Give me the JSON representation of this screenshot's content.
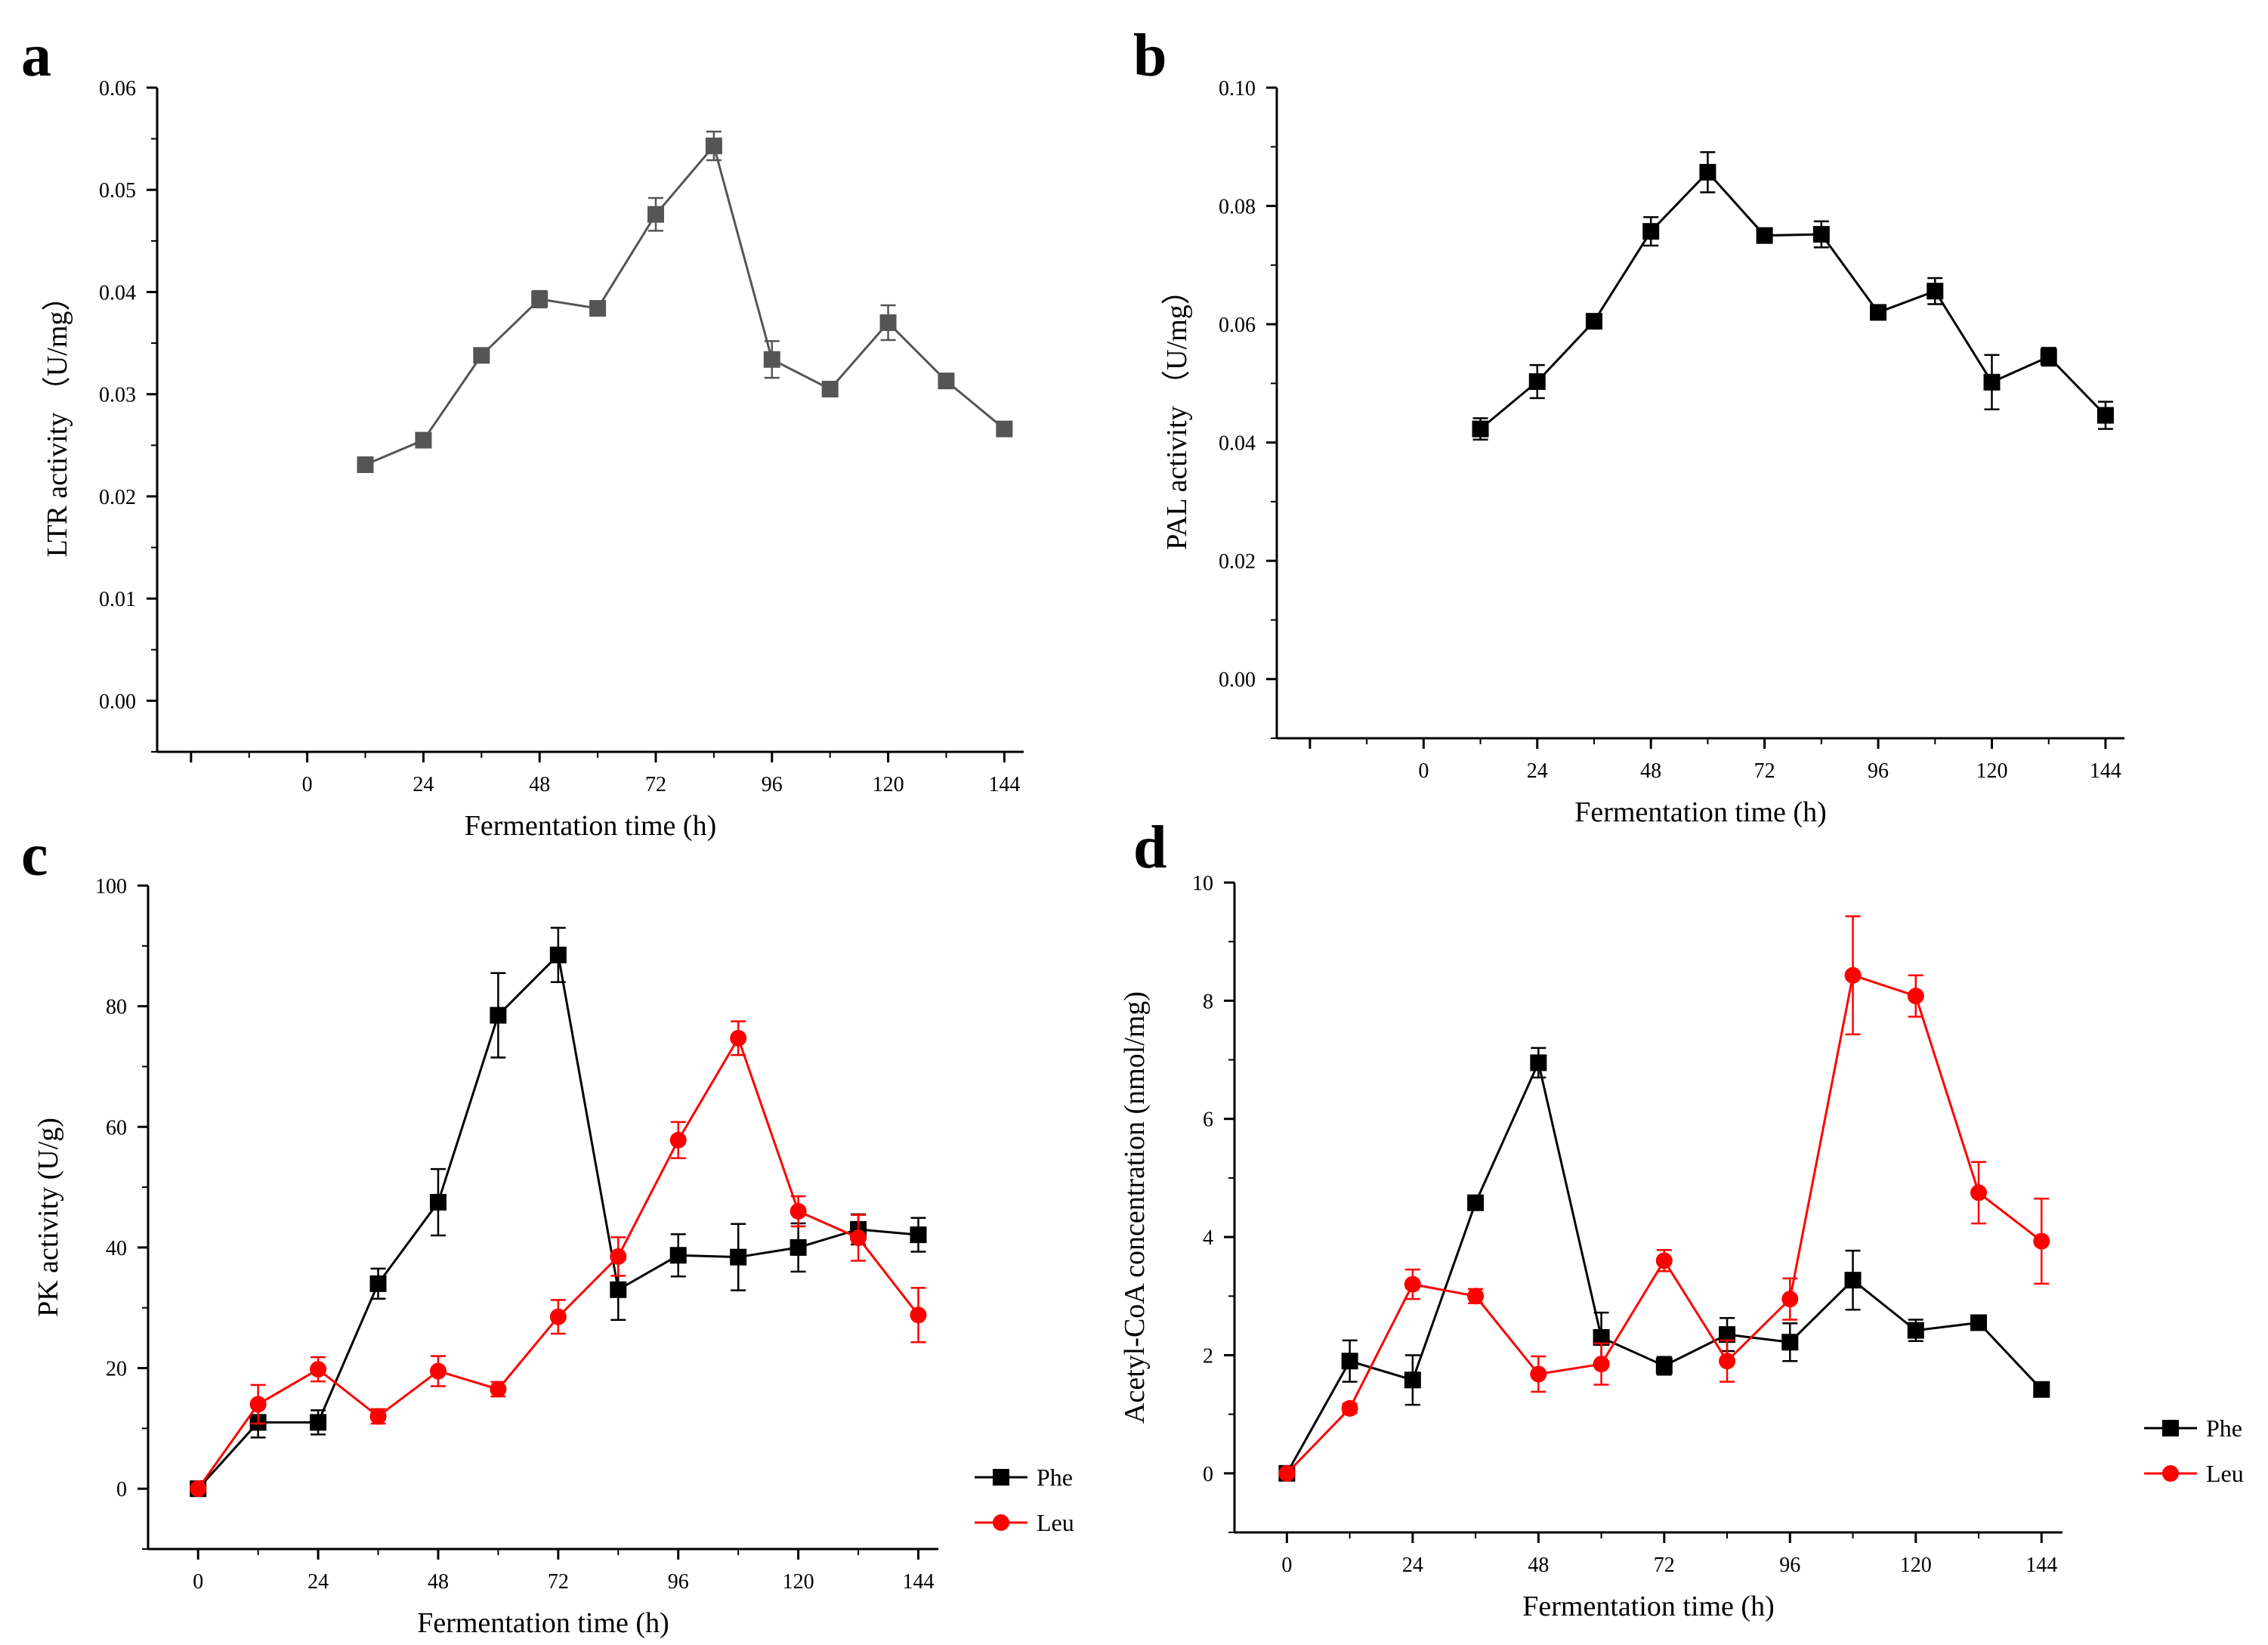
{
  "chart_data": [
    {
      "panel": "a",
      "type": "line",
      "title": "",
      "xlabel": "Fermentation time (h)",
      "ylabel": "LTR activity （U/mg）",
      "xlim": [
        -31,
        148
      ],
      "ylim": [
        -0.005,
        0.06
      ],
      "xticks": [
        0,
        24,
        48,
        72,
        96,
        120,
        144
      ],
      "yticks": [
        "0.00",
        "0.01",
        "0.02",
        "0.03",
        "0.04",
        "0.05",
        "0.06"
      ],
      "legend": null,
      "series": [
        {
          "name": "LTR",
          "color": "#555555",
          "marker": "square",
          "x": [
            12,
            24,
            36,
            48,
            60,
            72,
            84,
            96,
            108,
            120,
            132,
            144
          ],
          "y": [
            0.0231,
            0.0255,
            0.0338,
            0.0393,
            0.0384,
            0.0476,
            0.0543,
            0.0334,
            0.0305,
            0.037,
            0.0313,
            0.0266
          ],
          "err": [
            0.0003,
            0.0006,
            0.0003,
            0.0008,
            0.0007,
            0.0016,
            0.0014,
            0.0018,
            0.0003,
            0.0017,
            0.0003,
            0.0006
          ]
        }
      ]
    },
    {
      "panel": "b",
      "type": "line",
      "title": "",
      "xlabel": "Fermentation time (h)",
      "ylabel": "PAL activity （U/mg）",
      "xlim": [
        -31,
        148
      ],
      "ylim": [
        -0.01,
        0.1
      ],
      "xticks": [
        0,
        24,
        48,
        72,
        96,
        120,
        144
      ],
      "yticks": [
        "0.00",
        "0.02",
        "0.04",
        "0.06",
        "0.08",
        "0.10"
      ],
      "legend": null,
      "series": [
        {
          "name": "PAL",
          "color": "#000000",
          "marker": "square",
          "x": [
            12,
            24,
            36,
            48,
            60,
            72,
            84,
            96,
            108,
            120,
            132,
            144
          ],
          "y": [
            0.0423,
            0.0503,
            0.0605,
            0.0757,
            0.0857,
            0.075,
            0.0752,
            0.062,
            0.0656,
            0.0502,
            0.0545,
            0.0446
          ],
          "err": [
            0.0018,
            0.0028,
            0.001,
            0.0024,
            0.0034,
            0.0005,
            0.0022,
            0.0008,
            0.0022,
            0.0046,
            0.0015,
            0.0023
          ]
        }
      ]
    },
    {
      "panel": "c",
      "type": "line",
      "title": "",
      "xlabel": "Fermentation time (h)",
      "ylabel": "PK activity (U/g)",
      "xlim": [
        -10,
        148
      ],
      "ylim": [
        -10,
        100
      ],
      "xticks": [
        0,
        24,
        48,
        72,
        96,
        120,
        144
      ],
      "yticks": [
        "0",
        "20",
        "40",
        "60",
        "80",
        "100"
      ],
      "legend": {
        "position": "right",
        "entries": [
          "Phe",
          "Leu"
        ]
      },
      "series": [
        {
          "name": "Phe",
          "color": "#000000",
          "marker": "square",
          "x": [
            0,
            12,
            24,
            36,
            48,
            60,
            72,
            84,
            96,
            108,
            120,
            132,
            144
          ],
          "y": [
            0,
            11,
            11,
            34,
            47.5,
            78.5,
            88.5,
            33,
            38.7,
            38.4,
            40,
            43,
            42.1
          ],
          "err": [
            0.3,
            2.5,
            2.0,
            2.5,
            5.5,
            7.0,
            4.5,
            5.0,
            3.5,
            5.5,
            4.0,
            2.5,
            2.8
          ]
        },
        {
          "name": "Leu",
          "color": "#ff0000",
          "marker": "circle",
          "x": [
            0,
            12,
            24,
            36,
            48,
            60,
            72,
            84,
            96,
            108,
            120,
            132,
            144
          ],
          "y": [
            0,
            14,
            19.8,
            12,
            19.5,
            16.5,
            28.5,
            38.5,
            57.8,
            74.7,
            46,
            41.6,
            28.8
          ],
          "err": [
            0.3,
            3.2,
            2.0,
            1.2,
            2.5,
            1.2,
            2.8,
            3.2,
            3.0,
            2.8,
            2.5,
            3.8,
            4.5
          ]
        }
      ]
    },
    {
      "panel": "d",
      "type": "line",
      "title": "",
      "xlabel": "Fermentation time (h)",
      "ylabel": "Acetyl-CoA concentration (nmol/mg)",
      "xlim": [
        -10,
        148
      ],
      "ylim": [
        -1,
        10
      ],
      "xticks": [
        0,
        24,
        48,
        72,
        96,
        120,
        144
      ],
      "yticks": [
        "0",
        "2",
        "4",
        "6",
        "8",
        "10"
      ],
      "legend": {
        "position": "right",
        "entries": [
          "Phe",
          "Leu"
        ]
      },
      "series": [
        {
          "name": "Phe",
          "color": "#000000",
          "marker": "square",
          "x": [
            0,
            12,
            24,
            36,
            48,
            60,
            72,
            84,
            96,
            108,
            120,
            132,
            144
          ],
          "y": [
            0,
            1.9,
            1.58,
            4.58,
            6.95,
            2.3,
            1.82,
            2.35,
            2.22,
            3.27,
            2.42,
            2.55,
            1.42
          ],
          "err": [
            0.05,
            0.35,
            0.42,
            0.05,
            0.25,
            0.42,
            0.15,
            0.28,
            0.32,
            0.5,
            0.18,
            0.05,
            0.05
          ]
        },
        {
          "name": "Leu",
          "color": "#ff0000",
          "marker": "circle",
          "x": [
            0,
            12,
            24,
            36,
            48,
            60,
            72,
            84,
            96,
            108,
            120,
            132,
            144
          ],
          "y": [
            0,
            1.1,
            3.2,
            3.0,
            1.68,
            1.85,
            3.6,
            1.9,
            2.95,
            8.43,
            8.08,
            4.75,
            3.93
          ],
          "err": [
            0.05,
            0.08,
            0.25,
            0.12,
            0.3,
            0.35,
            0.18,
            0.35,
            0.35,
            1.0,
            0.35,
            0.52,
            0.72
          ]
        }
      ]
    }
  ]
}
